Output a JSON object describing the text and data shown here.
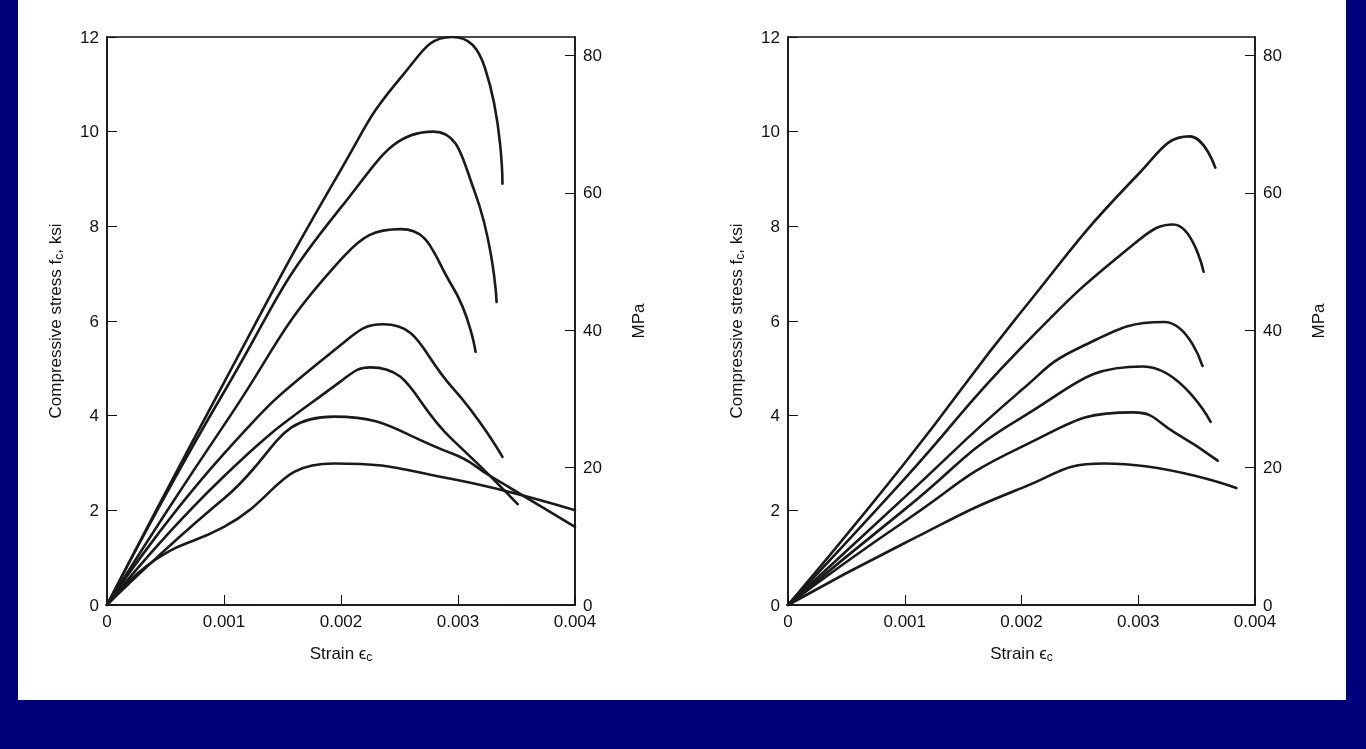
{
  "chart_data": [
    {
      "type": "line",
      "xlabel": "Strain ϵ$_{c}$",
      "ylabel": "Compressive stress f$_{c}$, ksi",
      "y2label": "MPa",
      "xlim": [
        0,
        0.004
      ],
      "xticks": [
        0,
        0.001,
        0.002,
        0.003,
        0.004
      ],
      "ylim": [
        0,
        12
      ],
      "yticks": [
        0,
        2,
        4,
        6,
        8,
        10,
        12
      ],
      "y2lim": [
        0,
        82.7
      ],
      "y2ticks": [
        0,
        20,
        40,
        60,
        80
      ],
      "series": [
        {
          "color": "#1a1a1a",
          "x": [
            0,
            0.001,
            0.002,
            0.00253,
            0.00295,
            0.00323,
            0.00338
          ],
          "values": [
            0,
            4.7,
            9.2,
            11.2,
            12,
            11.35,
            8.9
          ]
        },
        {
          "color": "#1a1a1a",
          "x": [
            0,
            0.001,
            0.002,
            0.00279,
            0.00314,
            0.00333
          ],
          "values": [
            0,
            4.5,
            8.4,
            10,
            8.75,
            6.4
          ]
        },
        {
          "color": "#1a1a1a",
          "x": [
            0,
            0.001,
            0.002,
            0.00251,
            0.00295,
            0.00315
          ],
          "values": [
            0,
            3.8,
            7.3,
            7.94,
            6.74,
            5.35
          ]
        },
        {
          "color": "#1a1a1a",
          "x": [
            0,
            0.001,
            0.002,
            0.00236,
            0.00295,
            0.00338
          ],
          "values": [
            0,
            3.2,
            5.5,
            5.93,
            4.6,
            3.13
          ]
        },
        {
          "color": "#1a1a1a",
          "x": [
            0,
            0.001,
            0.002,
            0.00225,
            0.00295,
            0.00351
          ],
          "values": [
            0,
            2.72,
            4.73,
            5.02,
            3.5,
            2.13
          ]
        },
        {
          "color": "#1a1a1a",
          "x": [
            0,
            0.001,
            0.00194,
            0.00295,
            0.00328,
            0.004
          ],
          "values": [
            0,
            2.25,
            3.98,
            3.2,
            2.72,
            1.65
          ]
        },
        {
          "color": "#1a1a1a",
          "x": [
            0,
            0.00041,
            0.001,
            0.00194,
            0.00295,
            0.004
          ],
          "values": [
            0,
            0.95,
            1.65,
            2.99,
            2.66,
            2.0
          ]
        }
      ]
    },
    {
      "type": "line",
      "xlabel": "Strain ϵ$_{c}$",
      "ylabel": "Compressive stress f$_{c}$, ksi",
      "y2label": "MPa",
      "xlim": [
        0,
        0.004
      ],
      "xticks": [
        0,
        0.001,
        0.002,
        0.003,
        0.004
      ],
      "ylim": [
        0,
        12
      ],
      "yticks": [
        0,
        2,
        4,
        6,
        8,
        10,
        12
      ],
      "y2lim": [
        0,
        82.7
      ],
      "y2ticks": [
        0,
        20,
        40,
        60,
        80
      ],
      "series": [
        {
          "color": "#1a1a1a",
          "x": [
            0,
            0.001,
            0.002,
            0.003,
            0.00344,
            0.00366
          ],
          "values": [
            0,
            3.0,
            6.2,
            9.1,
            9.9,
            9.24
          ]
        },
        {
          "color": "#1a1a1a",
          "x": [
            0,
            0.001,
            0.002,
            0.003,
            0.0033,
            0.00356
          ],
          "values": [
            0,
            2.67,
            5.44,
            7.7,
            8.04,
            7.04
          ]
        },
        {
          "color": "#1a1a1a",
          "x": [
            0,
            0.001,
            0.002,
            0.0025,
            0.00322,
            0.00355
          ],
          "values": [
            0,
            2.28,
            4.54,
            5.44,
            5.98,
            5.05
          ]
        },
        {
          "color": "#1a1a1a",
          "x": [
            0,
            0.001,
            0.002,
            0.00304,
            0.00362
          ],
          "values": [
            0,
            2.02,
            3.96,
            5.04,
            3.87
          ]
        },
        {
          "color": "#1a1a1a",
          "x": [
            0,
            0.001,
            0.002,
            0.00296,
            0.00332,
            0.00368
          ],
          "values": [
            0,
            1.77,
            3.34,
            4.07,
            3.63,
            3.05
          ]
        },
        {
          "color": "#1a1a1a",
          "x": [
            0,
            0.001,
            0.002,
            0.00271,
            0.00384
          ],
          "values": [
            0,
            1.31,
            2.47,
            2.99,
            2.47
          ]
        }
      ]
    }
  ]
}
